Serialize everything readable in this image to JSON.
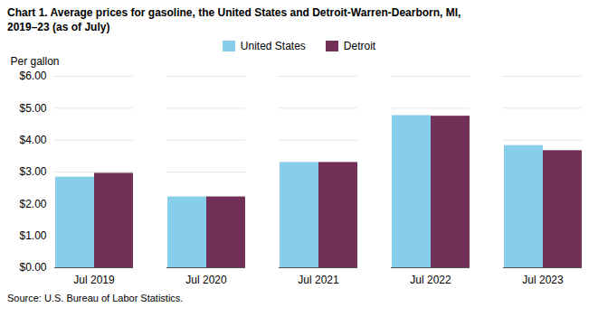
{
  "chart_data": {
    "type": "bar",
    "title": "Chart 1. Average prices for gasoline, the United States and Detroit-Warren-Dearborn, MI,\n2019–23 (as of July)",
    "ylabel": "Per gallon",
    "source": "Source: U.S. Bureau of Labor Statistics.",
    "categories": [
      "Jul 2019",
      "Jul 2020",
      "Jul 2021",
      "Jul 2022",
      "Jul 2023"
    ],
    "series": [
      {
        "name": "United States",
        "color": "#87CEEB",
        "values": [
          2.84,
          2.22,
          3.3,
          4.77,
          3.83
        ]
      },
      {
        "name": "Detroit",
        "color": "#722F57",
        "values": [
          2.96,
          2.22,
          3.3,
          4.75,
          3.67
        ]
      }
    ],
    "ylim": [
      0,
      6.0
    ],
    "yticks": [
      {
        "value": 0.0,
        "label": "$0.00"
      },
      {
        "value": 1.0,
        "label": "$1.00"
      },
      {
        "value": 2.0,
        "label": "$2.00"
      },
      {
        "value": 3.0,
        "label": "$3.00"
      },
      {
        "value": 4.0,
        "label": "$4.00"
      },
      {
        "value": 5.0,
        "label": "$5.00"
      },
      {
        "value": 6.0,
        "label": "$6.00"
      }
    ],
    "grid": true,
    "legend": "top"
  }
}
